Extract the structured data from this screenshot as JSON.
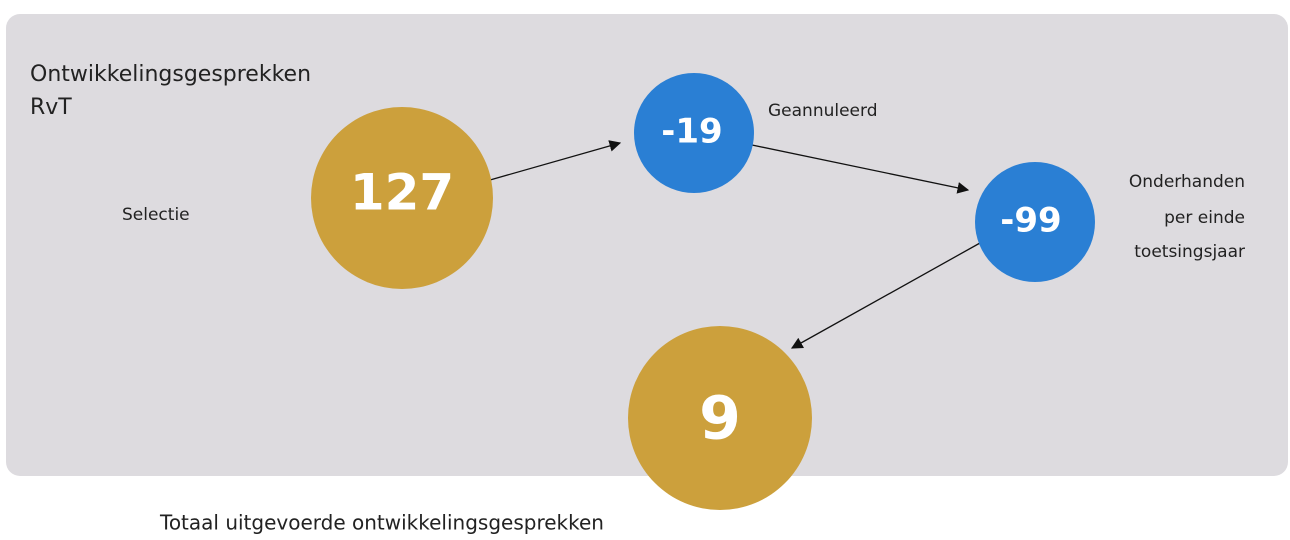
{
  "title_lines": [
    "Ontwikkelingsgesprekken",
    "RvT"
  ],
  "nodes": [
    {
      "value": 127,
      "label_lines": [
        "Selectie"
      ]
    },
    {
      "value": -19,
      "label_lines": [
        "Geannuleerd"
      ]
    },
    {
      "value": -99,
      "label_lines": [
        "Onderhanden",
        "per einde",
        "toetsingsjaar"
      ]
    },
    {
      "value": 9,
      "label_lines": [
        "Totaal uitgevoerde ontwikkelingsgesprekken"
      ]
    }
  ]
}
